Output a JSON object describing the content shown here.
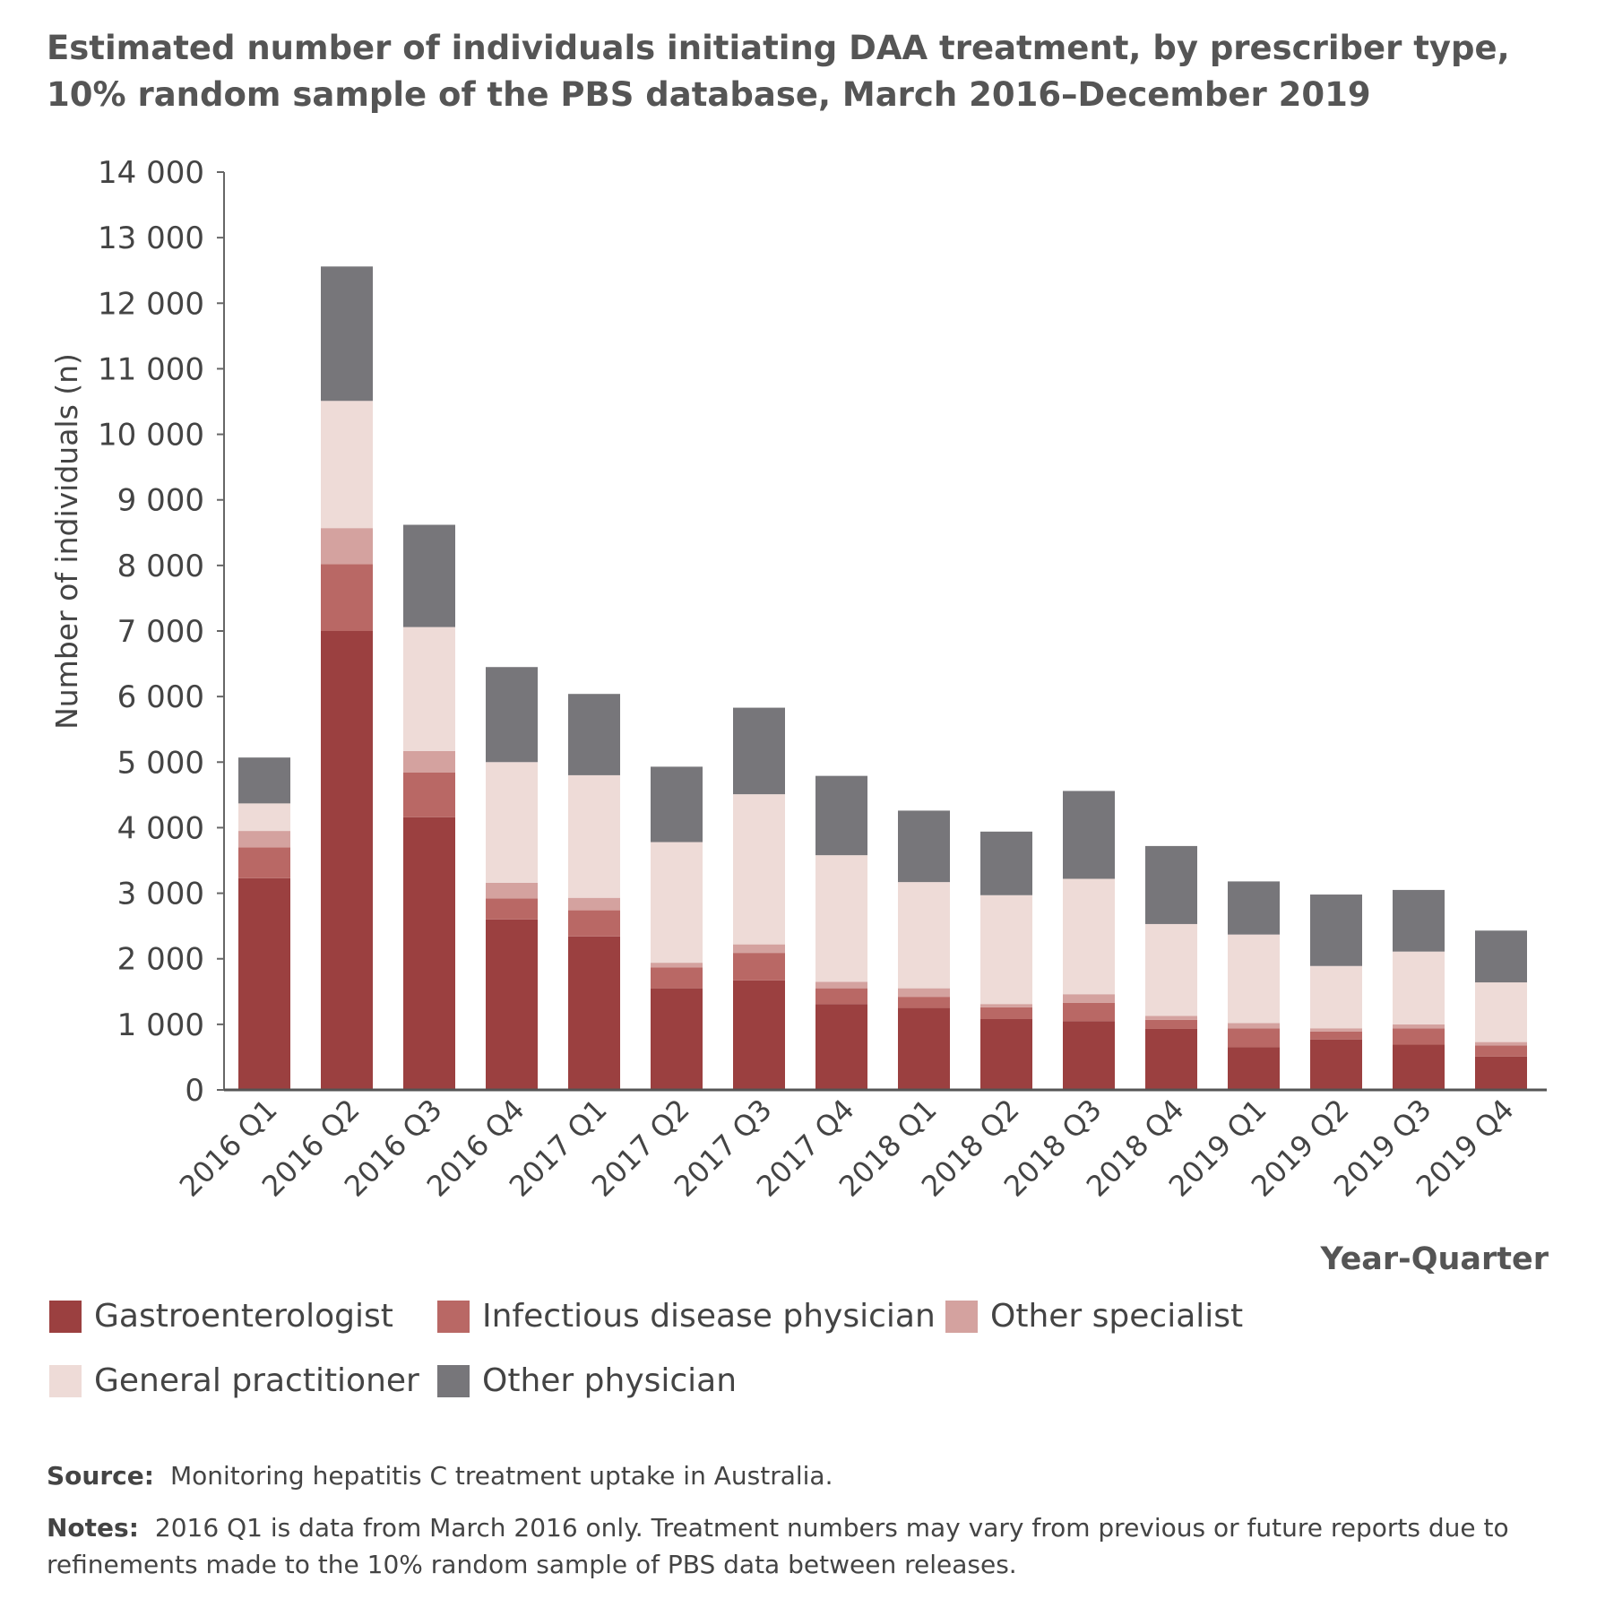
{
  "title_lines": [
    "Estimated number of individuals initiating DAA treatment, by prescriber type,",
    "10% random sample of the PBS database, March 2016–December 2019"
  ],
  "chart_data": {
    "type": "bar",
    "stacked": true,
    "title": "Estimated number of individuals initiating DAA treatment, by prescriber type, 10% random sample of the PBS database, March 2016–December 2019",
    "xlabel": "Year-Quarter",
    "ylabel": "Number of individuals (n)",
    "ylim": [
      0,
      14000
    ],
    "yticks": [
      0,
      1000,
      2000,
      3000,
      4000,
      5000,
      6000,
      7000,
      8000,
      9000,
      10000,
      11000,
      12000,
      13000,
      14000
    ],
    "ytick_labels": [
      "0",
      "1 000",
      "2 000",
      "3 000",
      "4 000",
      "5 000",
      "6 000",
      "7 000",
      "8 000",
      "9 000",
      "10 000",
      "11 000",
      "12 000",
      "13 000",
      "14 000"
    ],
    "grid": false,
    "legend_position": "bottom",
    "categories": [
      "2016 Q1",
      "2016 Q2",
      "2016 Q3",
      "2016 Q4",
      "2017 Q1",
      "2017 Q2",
      "2017 Q3",
      "2017 Q4",
      "2018 Q1",
      "2018 Q2",
      "2018 Q3",
      "2018 Q4",
      "2019 Q1",
      "2019 Q2",
      "2019 Q3",
      "2019 Q4"
    ],
    "series": [
      {
        "name": "Gastroenterologist",
        "color": "#9b4040",
        "values": [
          3230,
          7000,
          4160,
          2600,
          2340,
          1550,
          1670,
          1310,
          1250,
          1080,
          1050,
          930,
          650,
          770,
          690,
          510
        ]
      },
      {
        "name": "Infectious disease physician",
        "color": "#b96865",
        "values": [
          470,
          1020,
          680,
          320,
          400,
          320,
          420,
          240,
          170,
          180,
          280,
          140,
          290,
          120,
          250,
          170
        ]
      },
      {
        "name": "Other specialist",
        "color": "#d4a29f",
        "values": [
          250,
          550,
          330,
          240,
          190,
          70,
          130,
          100,
          130,
          50,
          130,
          60,
          80,
          50,
          60,
          50
        ]
      },
      {
        "name": "General practitioner",
        "color": "#eedbd7",
        "values": [
          420,
          1940,
          1890,
          1840,
          1870,
          1840,
          2290,
          1930,
          1620,
          1660,
          1760,
          1400,
          1350,
          950,
          1110,
          910
        ]
      },
      {
        "name": "Other physician",
        "color": "#77767a",
        "values": [
          700,
          2050,
          1560,
          1450,
          1240,
          1150,
          1320,
          1210,
          1090,
          970,
          1340,
          1190,
          810,
          1090,
          940,
          790
        ]
      }
    ]
  },
  "legend": {
    "items": [
      {
        "label": "Gastroenterologist",
        "color": "#9b4040"
      },
      {
        "label": "Infectious disease physician",
        "color": "#b96865"
      },
      {
        "label": "Other specialist",
        "color": "#d4a29f"
      },
      {
        "label": "General practitioner",
        "color": "#eedbd7"
      },
      {
        "label": "Other physician",
        "color": "#77767a"
      }
    ]
  },
  "footer": {
    "source_label": "Source:",
    "source_text": "Monitoring hepatitis C treatment uptake in Australia.",
    "notes_label": "Notes:",
    "notes_text": "2016 Q1 is data from March 2016 only. Treatment numbers may vary from previous or future reports due to refinements made to the 10% random sample of PBS data between releases."
  }
}
